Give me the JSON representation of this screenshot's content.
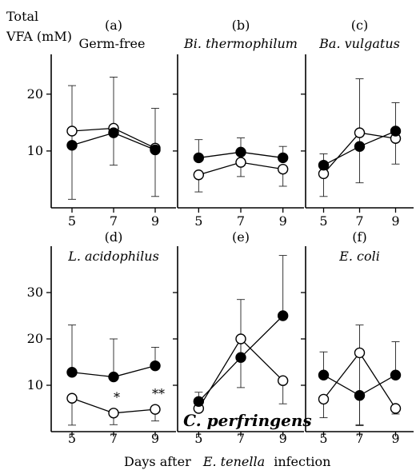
{
  "chart_data": {
    "type": "line",
    "ylabel_lines": [
      "Total",
      "VFA (mM)"
    ],
    "xlabel_prefix": "Days after",
    "xlabel_species": "E. tenella",
    "xlabel_suffix": "infection",
    "x_ticks": [
      5,
      7,
      9
    ],
    "panels": [
      {
        "id": "a",
        "letter": "(a)",
        "name": "Germ-free",
        "name_italic": false,
        "ylim": [
          0,
          27
        ],
        "y_ticks": [
          10,
          20
        ],
        "series": [
          {
            "marker": "open",
            "values": [
              13.5,
              14.0,
              10.5
            ],
            "err_up": [
              8,
              9,
              7
            ],
            "err_down": [
              12,
              6.5,
              8.5
            ]
          },
          {
            "marker": "filled",
            "values": [
              11.0,
              13.2,
              10.2
            ],
            "err_up": [
              0,
              0,
              0
            ],
            "err_down": [
              0,
              0,
              0
            ]
          }
        ],
        "annotations": []
      },
      {
        "id": "b",
        "letter": "(b)",
        "name": "Bi. thermophilum",
        "name_italic": true,
        "ylim": [
          0,
          27
        ],
        "y_ticks": [
          10,
          20
        ],
        "series": [
          {
            "marker": "open",
            "values": [
              5.8,
              8.0,
              6.8
            ],
            "err_up": [
              0,
              0,
              0
            ],
            "err_down": [
              3.0,
              2.5,
              3.0
            ]
          },
          {
            "marker": "filled",
            "values": [
              8.8,
              9.8,
              8.8
            ],
            "err_up": [
              3.2,
              2.5,
              2.0
            ],
            "err_down": [
              0,
              0,
              0
            ]
          }
        ],
        "annotations": []
      },
      {
        "id": "c",
        "letter": "(c)",
        "name": "Ba. vulgatus",
        "name_italic": true,
        "ylim": [
          0,
          27
        ],
        "y_ticks": [
          10,
          20
        ],
        "series": [
          {
            "marker": "open",
            "values": [
              6.0,
              13.2,
              12.2
            ],
            "err_up": [
              0,
              9.5,
              0
            ],
            "err_down": [
              4.0,
              8.8,
              4.5
            ]
          },
          {
            "marker": "filled",
            "values": [
              7.5,
              10.8,
              13.5
            ],
            "err_up": [
              2.0,
              0,
              5.0
            ],
            "err_down": [
              0,
              0,
              0
            ]
          }
        ],
        "annotations": []
      },
      {
        "id": "d",
        "letter": "(d)",
        "name": "L. acidophilus",
        "name_italic": true,
        "ylim": [
          0,
          40
        ],
        "y_ticks": [
          10,
          20,
          30
        ],
        "series": [
          {
            "marker": "open",
            "values": [
              7.2,
              4.0,
              4.8
            ],
            "err_up": [
              0,
              0,
              0
            ],
            "err_down": [
              5.8,
              2.5,
              2.5
            ]
          },
          {
            "marker": "filled",
            "values": [
              12.8,
              11.8,
              14.2
            ],
            "err_up": [
              10.2,
              8.2,
              4.0
            ],
            "err_down": [
              0,
              0,
              0
            ]
          }
        ],
        "annotations": [
          {
            "x": 7,
            "y": 6.5,
            "text": "*"
          },
          {
            "x": 9,
            "y": 7.2,
            "text": "**"
          }
        ]
      },
      {
        "id": "e",
        "letter": "(e)",
        "name": "C. perfringens",
        "name_italic": true,
        "ylim": [
          0,
          40
        ],
        "y_ticks": [
          10,
          20,
          30
        ],
        "series": [
          {
            "marker": "open",
            "values": [
              5.0,
              20.0,
              11.0
            ],
            "err_up": [
              0,
              0,
              0
            ],
            "err_down": [
              0,
              10.5,
              5.0
            ]
          },
          {
            "marker": "filled",
            "values": [
              6.5,
              16.0,
              25.0
            ],
            "err_up": [
              2.0,
              12.5,
              13.0
            ],
            "err_down": [
              0,
              0,
              0
            ]
          }
        ],
        "annotations": []
      },
      {
        "id": "f",
        "letter": "(f)",
        "name": "E. coli",
        "name_italic": true,
        "ylim": [
          0,
          40
        ],
        "y_ticks": [
          10,
          20,
          30
        ],
        "series": [
          {
            "marker": "open",
            "values": [
              7.0,
              17.0,
              5.0
            ],
            "err_up": [
              0,
              6.0,
              0
            ],
            "err_down": [
              4.0,
              15.5,
              1.2
            ]
          },
          {
            "marker": "filled",
            "values": [
              12.2,
              7.8,
              12.2
            ],
            "err_up": [
              5.0,
              0,
              7.2
            ],
            "err_down": [
              0,
              6.5,
              0
            ]
          }
        ],
        "annotations": []
      }
    ]
  }
}
